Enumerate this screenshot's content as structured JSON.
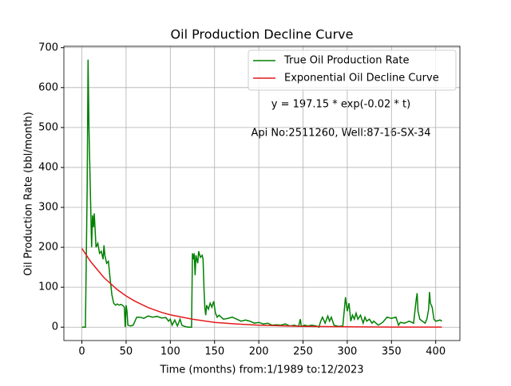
{
  "chart_data": {
    "type": "line",
    "title": "Oil Production Decline Curve",
    "xlabel": "Time (months) from:1/1989 to:12/2023",
    "ylabel": "Oil Production Rate (bbl/month)",
    "annotations": [
      "y = 197.15 * exp(-0.02 * t)",
      "Api No:2511260, Well:87-16-SX-34"
    ],
    "xlim": [
      -20.35,
      427.35
    ],
    "ylim": [
      -33.5,
      703.5
    ],
    "xticks": [
      0,
      50,
      100,
      150,
      200,
      250,
      300,
      350,
      400
    ],
    "yticks": [
      0,
      100,
      200,
      300,
      400,
      500,
      600,
      700
    ],
    "grid": true,
    "legend": "upper right",
    "series": [
      {
        "name": "True Oil Production Rate",
        "color": "#008000",
        "x": [
          0,
          4,
          6,
          7,
          8,
          10,
          11,
          12,
          13,
          14,
          16,
          18,
          20,
          22,
          24,
          25,
          26,
          28,
          30,
          32,
          34,
          36,
          38,
          40,
          42,
          44,
          46,
          48,
          49,
          50,
          51,
          52,
          55,
          58,
          62,
          66,
          70,
          75,
          80,
          85,
          90,
          95,
          98,
          100,
          102,
          105,
          108,
          111,
          113,
          116,
          120,
          124,
          125,
          126,
          127,
          128,
          129,
          131,
          132,
          134,
          136,
          137,
          138,
          139,
          140,
          141,
          143,
          145,
          147,
          149,
          151,
          153,
          155,
          160,
          165,
          170,
          175,
          180,
          185,
          190,
          195,
          200,
          205,
          210,
          215,
          220,
          225,
          230,
          235,
          240,
          245,
          247,
          248,
          252,
          255,
          260,
          265,
          268,
          270,
          272,
          275,
          278,
          280,
          282,
          285,
          290,
          295,
          298,
          300,
          302,
          304,
          306,
          308,
          310,
          312,
          315,
          318,
          320,
          322,
          325,
          328,
          330,
          335,
          340,
          345,
          350,
          355,
          358,
          360,
          365,
          370,
          375,
          378,
          379,
          380,
          382,
          385,
          388,
          390,
          392,
          393,
          394,
          396,
          398,
          400,
          405,
          407
        ],
        "values": [
          0,
          0,
          350,
          670,
          500,
          300,
          200,
          280,
          250,
          285,
          200,
          210,
          185,
          190,
          170,
          205,
          180,
          160,
          165,
          120,
          80,
          60,
          55,
          58,
          55,
          57,
          55,
          50,
          0,
          55,
          40,
          5,
          3,
          5,
          25,
          25,
          22,
          28,
          25,
          27,
          23,
          24,
          15,
          20,
          5,
          18,
          3,
          20,
          5,
          2,
          0,
          0,
          185,
          170,
          185,
          130,
          180,
          160,
          190,
          175,
          180,
          170,
          100,
          50,
          30,
          55,
          45,
          60,
          50,
          65,
          35,
          25,
          30,
          20,
          22,
          25,
          20,
          15,
          18,
          15,
          10,
          12,
          8,
          10,
          5,
          6,
          5,
          8,
          3,
          5,
          2,
          20,
          2,
          5,
          3,
          5,
          3,
          0,
          15,
          25,
          10,
          28,
          15,
          25,
          5,
          2,
          3,
          75,
          40,
          60,
          15,
          30,
          20,
          35,
          20,
          30,
          10,
          25,
          15,
          20,
          10,
          15,
          5,
          12,
          25,
          22,
          25,
          5,
          12,
          10,
          15,
          10,
          70,
          85,
          40,
          20,
          15,
          10,
          20,
          45,
          88,
          60,
          50,
          20,
          15,
          18,
          15
        ]
      },
      {
        "name": "Exponential Oil Decline Curve",
        "color": "#e41a1c",
        "x": [
          0,
          10,
          25,
          40,
          50,
          60,
          75,
          90,
          100,
          125,
          150,
          175,
          200,
          250,
          300,
          350,
          407
        ],
        "values": [
          197,
          164,
          124,
          94,
          78,
          65,
          49,
          37,
          31,
          20,
          12,
          8,
          5,
          2,
          1,
          0.3,
          0.1
        ]
      }
    ]
  }
}
